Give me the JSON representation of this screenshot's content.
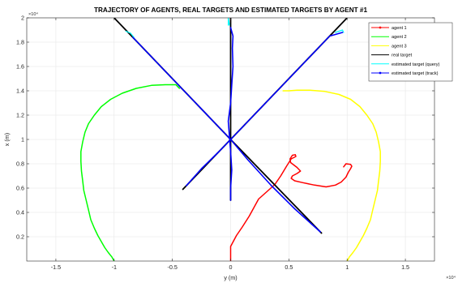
{
  "chart_data": {
    "type": "line",
    "title": "TRAJECTORY OF AGENTS, REAL TARGETS AND ESTIMATED TARGETS BY AGENT #1",
    "xlabel": "y (m)",
    "ylabel": "x (m)",
    "x_multiplier": "×10⁴",
    "y_multiplier": "×10⁴",
    "xlim": [
      -1.75,
      1.75
    ],
    "ylim": [
      0,
      2.0
    ],
    "xticks": [
      -1.5,
      -1,
      -0.5,
      0,
      0.5,
      1,
      1.5
    ],
    "xtick_labels": [
      "-1.5",
      "-1",
      "-0.5",
      "0",
      "0.5",
      "1",
      "1.5"
    ],
    "yticks": [
      0.2,
      0.4,
      0.6,
      0.8,
      1,
      1.2,
      1.4,
      1.6,
      1.8,
      2
    ],
    "ytick_labels": [
      "0.2",
      "0.4",
      "0.6",
      "0.8",
      "1",
      "1.2",
      "1.4",
      "1.6",
      "1.8",
      "2"
    ],
    "grid": true,
    "legend_position": "top-right",
    "legend": [
      {
        "label": "agent 1",
        "color": "#ff0000",
        "marker": "dot"
      },
      {
        "label": "agent 2",
        "color": "#00ff00",
        "marker": "none"
      },
      {
        "label": "agent 3",
        "color": "#ffff00",
        "marker": "none"
      },
      {
        "label": "real target",
        "color": "#000000",
        "marker": "none"
      },
      {
        "label": "estimated target (query)",
        "color": "#00ffff",
        "marker": "none"
      },
      {
        "label": "estimated target (track)",
        "color": "#0000ff",
        "marker": "dot"
      }
    ],
    "series": [
      {
        "name": "agent 1",
        "color": "#ff0000",
        "x": [
          0.0,
          0.0,
          0.05,
          0.1,
          0.16,
          0.24,
          0.31,
          0.38,
          0.43,
          0.48,
          0.52,
          0.56,
          0.555,
          0.53,
          0.51,
          0.515,
          0.57,
          0.6,
          0.57,
          0.53,
          0.52,
          0.55,
          0.62,
          0.72,
          0.82,
          0.9,
          0.95,
          0.99,
          1.01,
          1.03,
          1.04,
          1.03,
          0.99,
          0.97
        ],
        "y": [
          0.0,
          0.12,
          0.21,
          0.28,
          0.37,
          0.51,
          0.57,
          0.63,
          0.7,
          0.78,
          0.84,
          0.86,
          0.875,
          0.87,
          0.84,
          0.81,
          0.77,
          0.74,
          0.72,
          0.7,
          0.68,
          0.66,
          0.645,
          0.625,
          0.61,
          0.625,
          0.65,
          0.69,
          0.73,
          0.76,
          0.78,
          0.795,
          0.8,
          0.775
        ]
      },
      {
        "name": "agent 2",
        "color": "#00ff00",
        "x": [
          -1.0,
          -1.02,
          -1.05,
          -1.08,
          -1.11,
          -1.14,
          -1.17,
          -1.2,
          -1.22,
          -1.24,
          -1.26,
          -1.27,
          -1.28,
          -1.285,
          -1.285,
          -1.27,
          -1.25,
          -1.22,
          -1.17,
          -1.11,
          -1.03,
          -0.93,
          -0.81,
          -0.68,
          -0.56,
          -0.47,
          -0.45,
          -0.44
        ],
        "y": [
          0.0,
          0.035,
          0.07,
          0.11,
          0.16,
          0.21,
          0.27,
          0.34,
          0.42,
          0.5,
          0.58,
          0.66,
          0.74,
          0.82,
          0.9,
          0.98,
          1.06,
          1.13,
          1.2,
          1.27,
          1.33,
          1.38,
          1.42,
          1.445,
          1.45,
          1.45,
          1.43,
          1.42
        ]
      },
      {
        "name": "agent 3",
        "color": "#ffff00",
        "x": [
          1.0,
          1.02,
          1.05,
          1.08,
          1.11,
          1.14,
          1.17,
          1.2,
          1.22,
          1.24,
          1.26,
          1.27,
          1.28,
          1.285,
          1.285,
          1.27,
          1.25,
          1.22,
          1.17,
          1.11,
          1.03,
          0.93,
          0.81,
          0.68,
          0.57,
          0.5,
          0.45
        ],
        "y": [
          0.0,
          0.035,
          0.07,
          0.11,
          0.16,
          0.21,
          0.27,
          0.34,
          0.42,
          0.5,
          0.58,
          0.66,
          0.74,
          0.82,
          0.9,
          0.98,
          1.06,
          1.13,
          1.2,
          1.27,
          1.33,
          1.37,
          1.395,
          1.405,
          1.405,
          1.4,
          1.4
        ]
      },
      {
        "name": "real target",
        "color": "#000000",
        "segments": [
          {
            "x": [
              -1.0,
              0.0,
              0.78
            ],
            "y": [
              2.0,
              1.0,
              0.23
            ]
          },
          {
            "x": [
              1.0,
              0.0,
              -0.41
            ],
            "y": [
              2.0,
              1.0,
              0.59
            ]
          },
          {
            "x": [
              0.0,
              0.0,
              0.0
            ],
            "y": [
              2.0,
              1.0,
              0.5
            ]
          }
        ]
      },
      {
        "name": "estimated target (query)",
        "color": "#00ffff",
        "segments": [
          {
            "x": [
              -0.9,
              -0.86,
              -0.83
            ],
            "y": [
              1.89,
              1.875,
              1.84
            ]
          },
          {
            "x": [
              0.9,
              0.96,
              0.97
            ],
            "y": [
              1.88,
              1.9,
              1.88
            ]
          },
          {
            "x": [
              -0.02,
              -0.02,
              -0.01
            ],
            "y": [
              1.94,
              2.0,
              1.94
            ]
          }
        ]
      },
      {
        "name": "estimated target (track)",
        "color": "#0000ff",
        "segments": [
          {
            "x": [
              -0.84,
              -0.7,
              -0.5,
              -0.3,
              -0.1,
              0.0,
              0.15,
              0.35,
              0.55,
              0.7,
              0.77
            ],
            "y": [
              1.84,
              1.7,
              1.5,
              1.3,
              1.1,
              1.0,
              0.83,
              0.62,
              0.43,
              0.3,
              0.24
            ]
          },
          {
            "x": [
              0.96,
              0.85,
              0.7,
              0.5,
              0.3,
              0.1,
              0.0,
              -0.1,
              -0.25,
              -0.38
            ],
            "y": [
              1.88,
              1.85,
              1.7,
              1.5,
              1.3,
              1.1,
              1.0,
              0.9,
              0.76,
              0.62
            ]
          },
          {
            "x": [
              0.0,
              0.02,
              0.015,
              0.02,
              0.01,
              0.0,
              -0.02,
              -0.01,
              0.0,
              0.01,
              0.0,
              0.0
            ],
            "y": [
              1.92,
              1.85,
              1.75,
              1.6,
              1.45,
              1.3,
              1.15,
              1.02,
              0.9,
              0.75,
              0.6,
              0.5
            ]
          }
        ]
      }
    ]
  }
}
